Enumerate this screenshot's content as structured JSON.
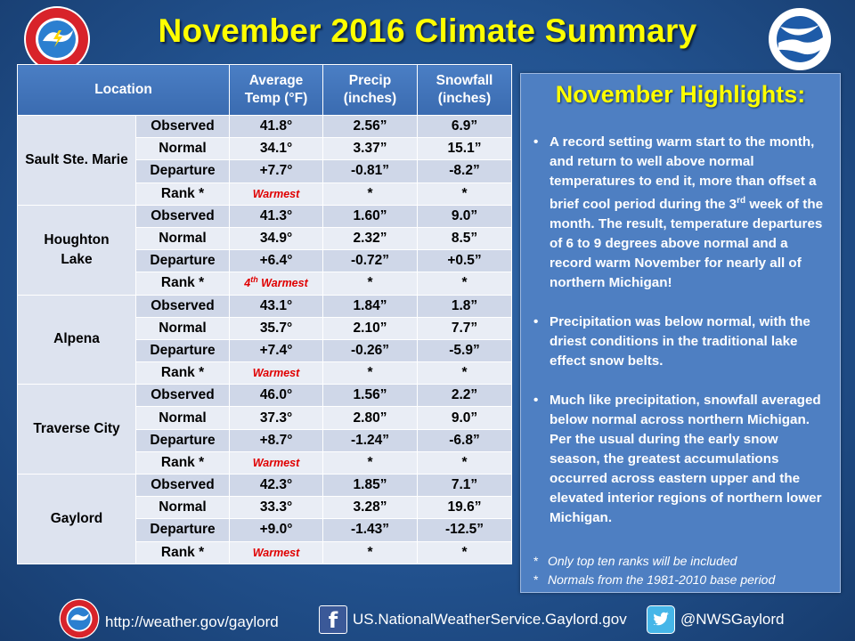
{
  "title": "November 2016 Climate Summary",
  "table": {
    "headers": {
      "location": "Location",
      "temp": [
        "Average",
        "Temp (°F)"
      ],
      "precip": [
        "Precip",
        "(inches)"
      ],
      "snow": [
        "Snowfall",
        "(inches)"
      ]
    },
    "stations": [
      {
        "name": [
          "Sault Ste. Marie"
        ],
        "rows": [
          {
            "label": "Observed",
            "temp": "41.8°",
            "precip": "2.56”",
            "snow": "6.9”"
          },
          {
            "label": "Normal",
            "temp": "34.1°",
            "precip": "3.37”",
            "snow": "15.1”"
          },
          {
            "label": "Departure",
            "temp": "+7.7°",
            "precip": "-0.81”",
            "snow": "-8.2”"
          },
          {
            "label": "Rank *",
            "rank_pre": "",
            "rank_sup": "",
            "rank": "Warmest",
            "precip": "*",
            "snow": "*"
          }
        ]
      },
      {
        "name": [
          "Houghton",
          "Lake"
        ],
        "rows": [
          {
            "label": "Observed",
            "temp": "41.3°",
            "precip": "1.60”",
            "snow": "9.0”"
          },
          {
            "label": "Normal",
            "temp": "34.9°",
            "precip": "2.32”",
            "snow": "8.5”"
          },
          {
            "label": "Departure",
            "temp": "+6.4°",
            "precip": "-0.72”",
            "snow": "+0.5”"
          },
          {
            "label": "Rank *",
            "rank_pre": "4",
            "rank_sup": "th",
            "rank": " Warmest",
            "precip": "*",
            "snow": "*"
          }
        ]
      },
      {
        "name": [
          "Alpena"
        ],
        "rows": [
          {
            "label": "Observed",
            "temp": "43.1°",
            "precip": "1.84”",
            "snow": "1.8”"
          },
          {
            "label": "Normal",
            "temp": "35.7°",
            "precip": "2.10”",
            "snow": "7.7”"
          },
          {
            "label": "Departure",
            "temp": "+7.4°",
            "precip": "-0.26”",
            "snow": "-5.9”"
          },
          {
            "label": "Rank *",
            "rank_pre": "",
            "rank_sup": "",
            "rank": "Warmest",
            "precip": "*",
            "snow": "*"
          }
        ]
      },
      {
        "name": [
          "Traverse City"
        ],
        "rows": [
          {
            "label": "Observed",
            "temp": "46.0°",
            "precip": "1.56”",
            "snow": "2.2”"
          },
          {
            "label": "Normal",
            "temp": "37.3°",
            "precip": "2.80”",
            "snow": "9.0”"
          },
          {
            "label": "Departure",
            "temp": "+8.7°",
            "precip": "-1.24”",
            "snow": "-6.8”"
          },
          {
            "label": "Rank *",
            "rank_pre": "",
            "rank_sup": "",
            "rank": "Warmest",
            "precip": "*",
            "snow": "*"
          }
        ]
      },
      {
        "name": [
          "Gaylord"
        ],
        "rows": [
          {
            "label": "Observed",
            "temp": "42.3°",
            "precip": "1.85”",
            "snow": "7.1”"
          },
          {
            "label": "Normal",
            "temp": "33.3°",
            "precip": "3.28”",
            "snow": "19.6”"
          },
          {
            "label": "Departure",
            "temp": "+9.0°",
            "precip": "-1.43”",
            "snow": "-12.5”"
          },
          {
            "label": "Rank *",
            "rank_pre": "",
            "rank_sup": "",
            "rank": "Warmest",
            "precip": "*",
            "snow": "*"
          }
        ]
      }
    ]
  },
  "highlights": {
    "title": "November Highlights:",
    "bullet_symbol": "•",
    "bullet1_a": "A record setting warm start to the month, and return to well above normal temperatures to end it, more than offset a brief cool period during the 3",
    "bullet1_sup": "rd",
    "bullet1_b": " week of the month.  The result, temperature departures of 6 to 9 degrees above normal and a record warm November for nearly all of northern Michigan!",
    "bullet2": "Precipitation was below normal, with the driest conditions in the traditional lake effect snow belts.",
    "bullet3": "Much like precipitation, snowfall averaged below normal across northern Michigan.  Per the usual during the early snow season, the greatest accumulations occurred across eastern upper and the elevated interior regions of northern lower Michigan.",
    "note_symbol": "*",
    "notes": [
      "Only top ten ranks will be included",
      "Normals from the 1981-2010 base period"
    ]
  },
  "footer": {
    "website": "http://weather.gov/gaylord",
    "facebook_letter": "f",
    "facebook": "US.NationalWeatherService.Gaylord.gov",
    "twitter": "@NWSGaylord"
  },
  "colors": {
    "title": "#ffff00",
    "rank": "#e00000",
    "header": "#4176bc",
    "panel": "#4e7fc2"
  }
}
